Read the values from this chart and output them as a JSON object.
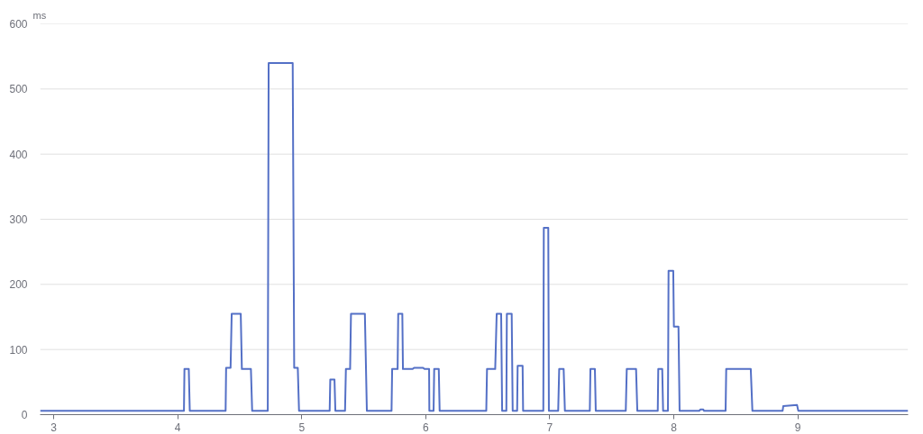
{
  "chart_data": {
    "type": "line",
    "ylabel": "ms",
    "x": [
      2.89,
      4.05,
      4.054,
      4.089,
      4.097,
      4.386,
      4.39,
      4.426,
      4.435,
      4.508,
      4.517,
      4.59,
      4.6,
      4.726,
      4.733,
      4.927,
      4.939,
      4.968,
      4.978,
      5.225,
      5.23,
      5.264,
      5.271,
      5.349,
      5.356,
      5.39,
      5.397,
      5.509,
      5.525,
      5.724,
      5.729,
      5.773,
      5.778,
      5.811,
      5.816,
      5.894,
      5.906,
      5.978,
      5.99,
      6.027,
      6.029,
      6.063,
      6.068,
      6.105,
      6.112,
      6.488,
      6.494,
      6.56,
      6.572,
      6.608,
      6.616,
      6.65,
      6.654,
      6.693,
      6.701,
      6.737,
      6.741,
      6.781,
      6.785,
      6.948,
      6.952,
      6.988,
      6.993,
      7.068,
      7.076,
      7.112,
      7.122,
      7.323,
      7.328,
      7.364,
      7.371,
      7.613,
      7.621,
      7.696,
      7.706,
      7.871,
      7.875,
      7.907,
      7.914,
      7.953,
      7.958,
      7.996,
      8.001,
      8.038,
      8.047,
      8.207,
      8.214,
      8.238,
      8.243,
      8.418,
      8.423,
      8.621,
      8.634,
      8.878,
      8.883,
      8.994,
      9.004,
      9.89
    ],
    "series": [
      {
        "color": "#5470c6",
        "values": [
          6,
          6,
          70,
          70,
          6,
          6,
          72,
          72,
          155,
          155,
          70,
          70,
          6,
          6,
          540,
          540,
          72,
          72,
          6,
          6,
          54,
          54,
          6,
          6,
          70,
          70,
          155,
          155,
          6,
          6,
          70,
          70,
          155,
          155,
          70,
          70,
          72,
          72,
          70,
          70,
          6,
          6,
          70,
          70,
          6,
          6,
          70,
          70,
          155,
          155,
          6,
          6,
          155,
          155,
          6,
          6,
          75,
          75,
          6,
          6,
          287,
          287,
          6,
          6,
          70,
          70,
          6,
          6,
          70,
          70,
          6,
          6,
          70,
          70,
          6,
          6,
          70,
          70,
          6,
          6,
          221,
          221,
          135,
          135,
          6,
          6,
          8,
          8,
          6,
          6,
          70,
          70,
          6,
          6,
          13,
          15,
          6,
          6
        ]
      }
    ],
    "xlim": [
      2.89,
      9.89
    ],
    "xticks": [
      3,
      4,
      5,
      6,
      7,
      8,
      9
    ],
    "ylim": [
      0,
      600
    ],
    "yticks": [
      0,
      100,
      200,
      300,
      400,
      500,
      600
    ],
    "grid": "y"
  }
}
